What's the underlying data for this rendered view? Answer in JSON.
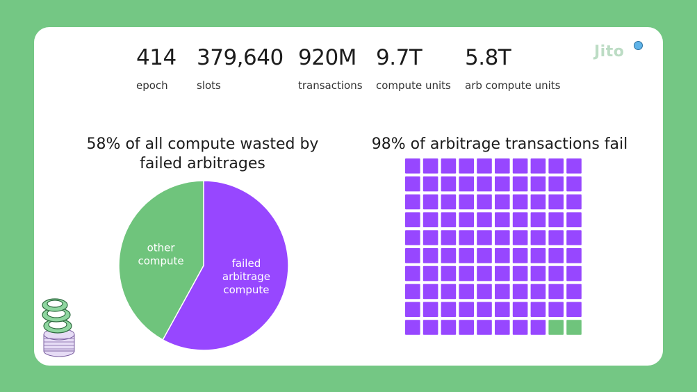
{
  "stats": [
    {
      "value": "414",
      "label": "epoch"
    },
    {
      "value": "379,640",
      "label": "slots"
    },
    {
      "value": "920M",
      "label": "transactions"
    },
    {
      "value": "9.7T",
      "label": "compute units"
    },
    {
      "value": "5.8T",
      "label": "arb compute units"
    }
  ],
  "logo": {
    "text": "Jito"
  },
  "colors": {
    "purple": "#9747ff",
    "green": "#6fc47c",
    "background": "#74c784"
  },
  "chart_data": [
    {
      "type": "pie",
      "title_line1": "58% of all compute wasted by",
      "title_line2": "failed arbitrages",
      "slices": [
        {
          "label_lines": [
            "failed",
            "arbitrage",
            "compute"
          ],
          "value": 58,
          "color": "#9747ff"
        },
        {
          "label_lines": [
            "other",
            "compute"
          ],
          "value": 42,
          "color": "#6fc47c"
        }
      ]
    },
    {
      "type": "waffle",
      "title": "98% of arbitrage transactions fail",
      "rows": 10,
      "cols": 10,
      "failed_pct": 98,
      "success_pct": 2,
      "failed_color": "#9747ff",
      "success_color": "#6fc47c"
    }
  ]
}
